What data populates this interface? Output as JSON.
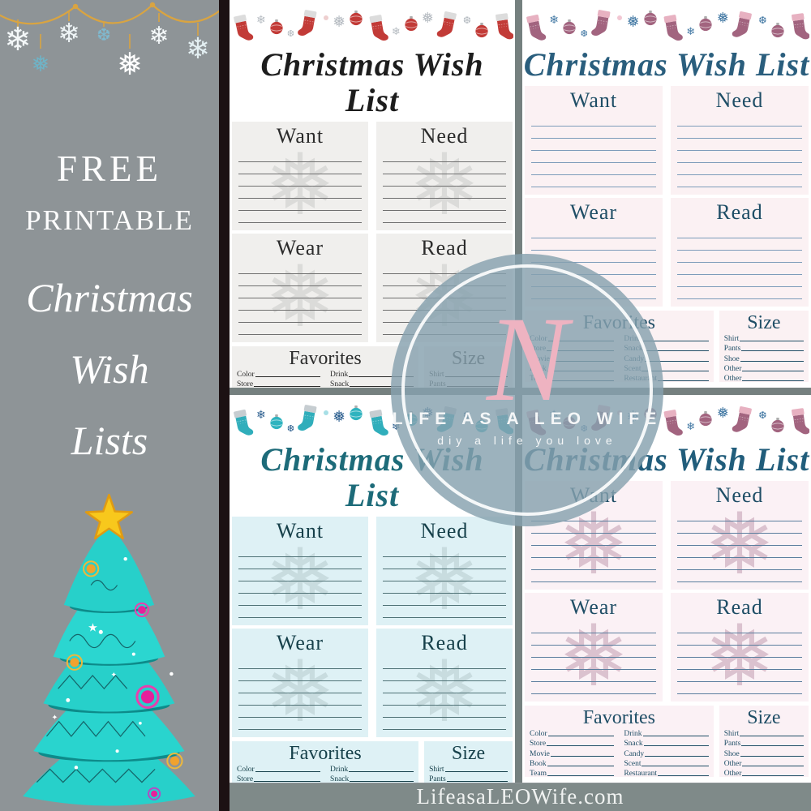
{
  "sidebar": {
    "line1": "FREE",
    "line2": "PRINTABLE",
    "script_lines": [
      "Christmas",
      "Wish",
      "Lists"
    ],
    "garland_gold": "#d9a441",
    "tree_teal": "#27d0ca",
    "tree_dark": "#0d8b8a",
    "star_yellow": "#f8c81c"
  },
  "watermark": {
    "monogram": "N",
    "title": "LIFE AS A LEO WIFE",
    "tagline": "diy a life you love",
    "circle_color": "#86a1af"
  },
  "footer": {
    "url": "LifeasaLEOWife.com"
  },
  "wishlist": {
    "title": "Christmas Wish List",
    "sections": [
      "Want",
      "Need",
      "Wear",
      "Read"
    ],
    "favorites_title": "Favorites",
    "favorites_left": [
      "Color",
      "Store",
      "Movie",
      "Book",
      "Team"
    ],
    "favorites_right": [
      "Drink",
      "Snack",
      "Candy",
      "Scent",
      "Restaurant"
    ],
    "size_title": "Size",
    "size_fields": [
      "Shirt",
      "Pants",
      "Shoe",
      "Other",
      "Other"
    ]
  },
  "themes": [
    {
      "name": "red",
      "title_color": "#1d1d1d",
      "box_bg": "#f0efed",
      "header_color": "#2b2b2b",
      "line_color": "#6f6f6f",
      "flake_color": "#dbdbd9",
      "show_flake": true,
      "stocking": "#c23b37",
      "cuff": "#dcdcdc",
      "ornament": "#c23b37",
      "banner_flake": "#b5bbc1",
      "banner_dot": "#eecfcf"
    },
    {
      "name": "mauve",
      "title_color": "#2a5e7d",
      "box_bg": "#fbf1f3",
      "header_color": "#1f4e66",
      "line_color": "#7d9cba",
      "flake_color": "#f6e9ee",
      "show_flake": false,
      "stocking": "#a2647f",
      "cuff": "#e7b1c1",
      "ornament": "#a2647f",
      "banner_flake": "#4379a4",
      "banner_dot": "#f2c7d3"
    },
    {
      "name": "teal",
      "title_color": "#1d6b79",
      "box_bg": "#def1f5",
      "header_color": "#16404a",
      "line_color": "#4f7276",
      "flake_color": "#c8dcdf",
      "show_flake": true,
      "stocking": "#30aebb",
      "cuff": "#c6cdd1",
      "ornament": "#2fb3bf",
      "banner_flake": "#2b5e8e",
      "banner_dot": "#a7dfe6"
    },
    {
      "name": "pink",
      "title_color": "#215d7b",
      "box_bg": "#fbf1f5",
      "header_color": "#1f4e66",
      "line_color": "#5b7e9e",
      "flake_color": "#dbc2cf",
      "show_flake": true,
      "stocking": "#a2647f",
      "cuff": "#e7b1c1",
      "ornament": "#a2647f",
      "banner_flake": "#4379a4",
      "banner_dot": "#f2c7d3"
    }
  ]
}
